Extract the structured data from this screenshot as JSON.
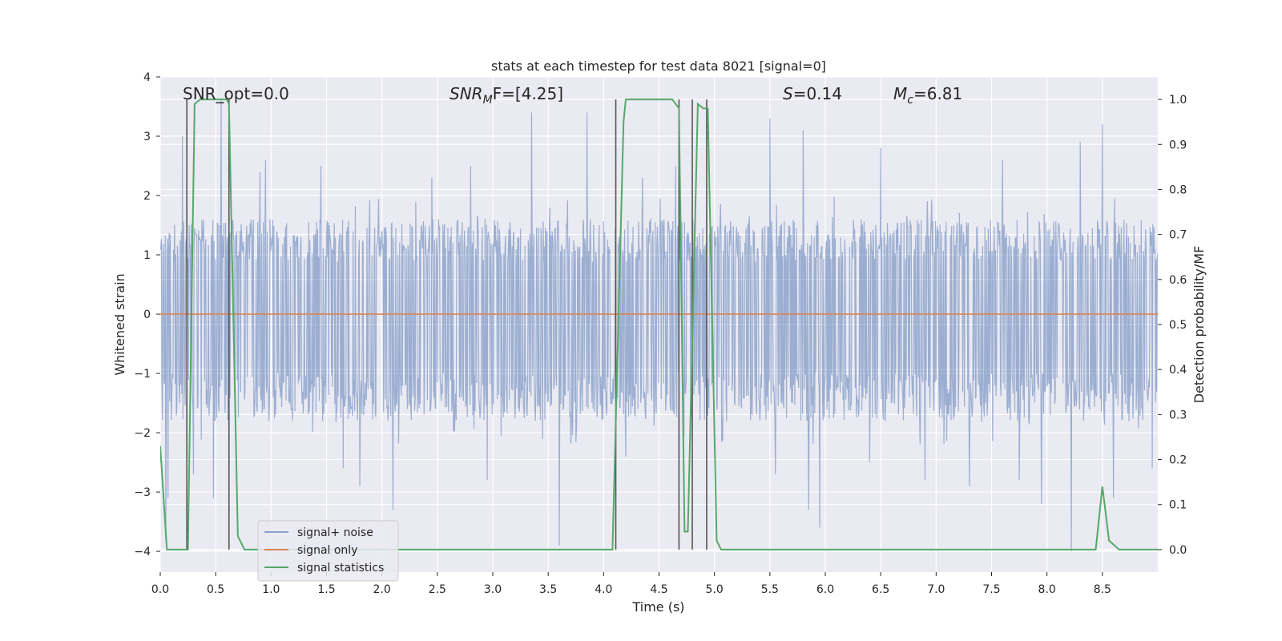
{
  "chart_data": {
    "type": "line",
    "title": "stats at each timestep for test data 8021 [signal=0]",
    "xlabel": "Time (s)",
    "ylabel_left": "Whitened strain",
    "ylabel_right": "Detection probability/MF",
    "xlim": [
      0.0,
      9.0
    ],
    "ylim_left": [
      -4.35,
      4.0
    ],
    "ylim_right": [
      -0.05,
      1.05
    ],
    "x_ticks": [
      0.0,
      0.5,
      1.0,
      1.5,
      2.0,
      2.5,
      3.0,
      3.5,
      4.0,
      4.5,
      5.0,
      5.5,
      6.0,
      6.5,
      7.0,
      7.5,
      8.0,
      8.5
    ],
    "x_tick_labels": [
      "0.0",
      "0.5",
      "1.0",
      "1.5",
      "2.0",
      "2.5",
      "3.0",
      "3.5",
      "4.0",
      "4.5",
      "5.0",
      "5.5",
      "6.0",
      "6.5",
      "7.0",
      "7.5",
      "8.0",
      "8.5"
    ],
    "y_left_ticks": [
      4,
      3,
      2,
      1,
      0,
      -1,
      -2,
      -3,
      -4
    ],
    "y_left_tick_labels": [
      "4",
      "3",
      "2",
      "1",
      "0",
      "−1",
      "−2",
      "−3",
      "−4"
    ],
    "y_right_ticks": [
      1.0,
      0.9,
      0.8,
      0.7,
      0.6,
      0.5,
      0.4,
      0.3,
      0.2,
      0.1,
      0.0
    ],
    "y_right_tick_labels": [
      "1.0",
      "0.9",
      "0.8",
      "0.7",
      "0.6",
      "0.5",
      "0.4",
      "0.3",
      "0.2",
      "0.1",
      "0.0"
    ],
    "grid": true,
    "legend_placement": "lower-left",
    "annotations": {
      "snr_opt": "SNR_opt=0.0",
      "snr_mf_sym": "SNR",
      "snr_mf_sub": "M",
      "snr_mf_rest": "F=[4.25]",
      "s_sym": "S",
      "s_rest": "=0.14",
      "mc_sym": "M",
      "mc_sub": "c",
      "mc_rest": "=6.81"
    },
    "series": [
      {
        "name": "signal+ noise",
        "color": "#4c72b0",
        "kind": "noise",
        "typical_envelope": [
          -1.8,
          1.6
        ],
        "spikes": [
          [
            0.05,
            -3.8
          ],
          [
            0.07,
            -3.1
          ],
          [
            0.2,
            3.0
          ],
          [
            0.3,
            -2.7
          ],
          [
            0.48,
            -3.1
          ],
          [
            0.55,
            3.6
          ],
          [
            0.9,
            2.4
          ],
          [
            0.95,
            2.6
          ],
          [
            1.45,
            2.5
          ],
          [
            1.65,
            -2.6
          ],
          [
            1.8,
            -2.9
          ],
          [
            2.1,
            -3.3
          ],
          [
            2.45,
            2.3
          ],
          [
            2.8,
            2.5
          ],
          [
            2.95,
            -2.8
          ],
          [
            3.35,
            3.4
          ],
          [
            3.6,
            -3.9
          ],
          [
            3.85,
            3.4
          ],
          [
            4.2,
            -2.4
          ],
          [
            4.35,
            2.3
          ],
          [
            4.65,
            2.5
          ],
          [
            5.5,
            3.3
          ],
          [
            5.55,
            -2.7
          ],
          [
            5.8,
            3.1
          ],
          [
            5.85,
            -3.3
          ],
          [
            5.95,
            -3.6
          ],
          [
            6.4,
            -2.5
          ],
          [
            6.5,
            2.8
          ],
          [
            6.9,
            -2.8
          ],
          [
            7.3,
            -2.9
          ],
          [
            7.6,
            2.6
          ],
          [
            7.75,
            -2.8
          ],
          [
            7.95,
            -3.2
          ],
          [
            8.22,
            -4.0
          ],
          [
            8.3,
            2.9
          ],
          [
            8.5,
            3.2
          ],
          [
            8.6,
            -3.1
          ],
          [
            8.95,
            -2.6
          ]
        ]
      },
      {
        "name": "signal only",
        "color": "#dd8452",
        "kind": "flat",
        "value": 0.0
      },
      {
        "name": "signal statistics",
        "color": "#55a868",
        "kind": "probability",
        "x": [
          0.0,
          0.06,
          0.25,
          0.31,
          0.36,
          0.6,
          0.62,
          0.7,
          0.76,
          4.08,
          4.18,
          4.2,
          4.25,
          4.62,
          4.68,
          4.73,
          4.76,
          4.85,
          4.9,
          4.94,
          5.02,
          5.06,
          8.44,
          8.5,
          8.56,
          8.65,
          9.0
        ],
        "y": [
          0.23,
          0.0,
          0.0,
          0.99,
          1.0,
          1.0,
          0.99,
          0.03,
          0.0,
          0.0,
          0.95,
          1.0,
          1.0,
          1.0,
          0.98,
          0.04,
          0.04,
          0.99,
          0.98,
          0.98,
          0.02,
          0.0,
          0.0,
          0.14,
          0.02,
          0.0,
          0.0
        ]
      }
    ],
    "marker_lines_x": [
      0.24,
      0.62,
      4.11,
      4.68,
      4.8,
      4.93
    ]
  }
}
